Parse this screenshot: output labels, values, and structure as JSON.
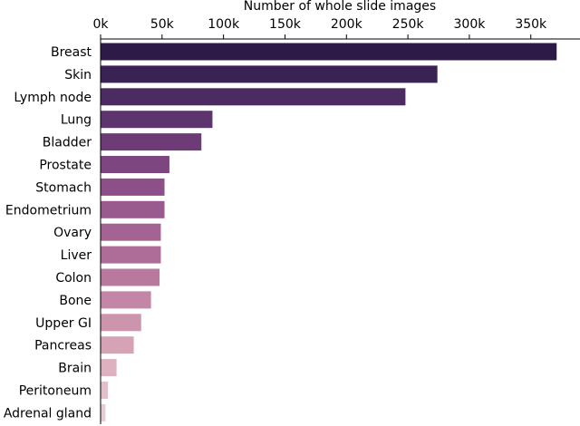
{
  "chart_data": {
    "type": "bar",
    "orientation": "horizontal",
    "xlabel": "Number of whole slide images",
    "xaxis_position": "top",
    "xlim": [
      0,
      390000
    ],
    "xticks": [
      0,
      50000,
      100000,
      150000,
      200000,
      250000,
      300000,
      350000
    ],
    "xtick_labels": [
      "0k",
      "50k",
      "100k",
      "150k",
      "200k",
      "250k",
      "300k",
      "350k"
    ],
    "categories": [
      "Breast",
      "Skin",
      "Lymph node",
      "Lung",
      "Bladder",
      "Prostate",
      "Stomach",
      "Endometrium",
      "Ovary",
      "Liver",
      "Colon",
      "Bone",
      "Upper GI",
      "Pancreas",
      "Brain",
      "Peritoneum",
      "Adrenal gland"
    ],
    "values": [
      371000,
      274000,
      248000,
      91000,
      82000,
      56000,
      52000,
      52000,
      49000,
      49000,
      48000,
      41000,
      33000,
      27000,
      13000,
      6000,
      4000
    ],
    "colors": [
      "#2e1a47",
      "#3a2255",
      "#4b2b62",
      "#5d346e",
      "#6d3c77",
      "#7e4681",
      "#8c4f88",
      "#995a8e",
      "#a36393",
      "#ad6d98",
      "#b9799f",
      "#c386a6",
      "#cc94ad",
      "#d6a3b6",
      "#ddb1bf",
      "#e3c0c9",
      "#e8cdd4"
    ],
    "grid": false
  }
}
